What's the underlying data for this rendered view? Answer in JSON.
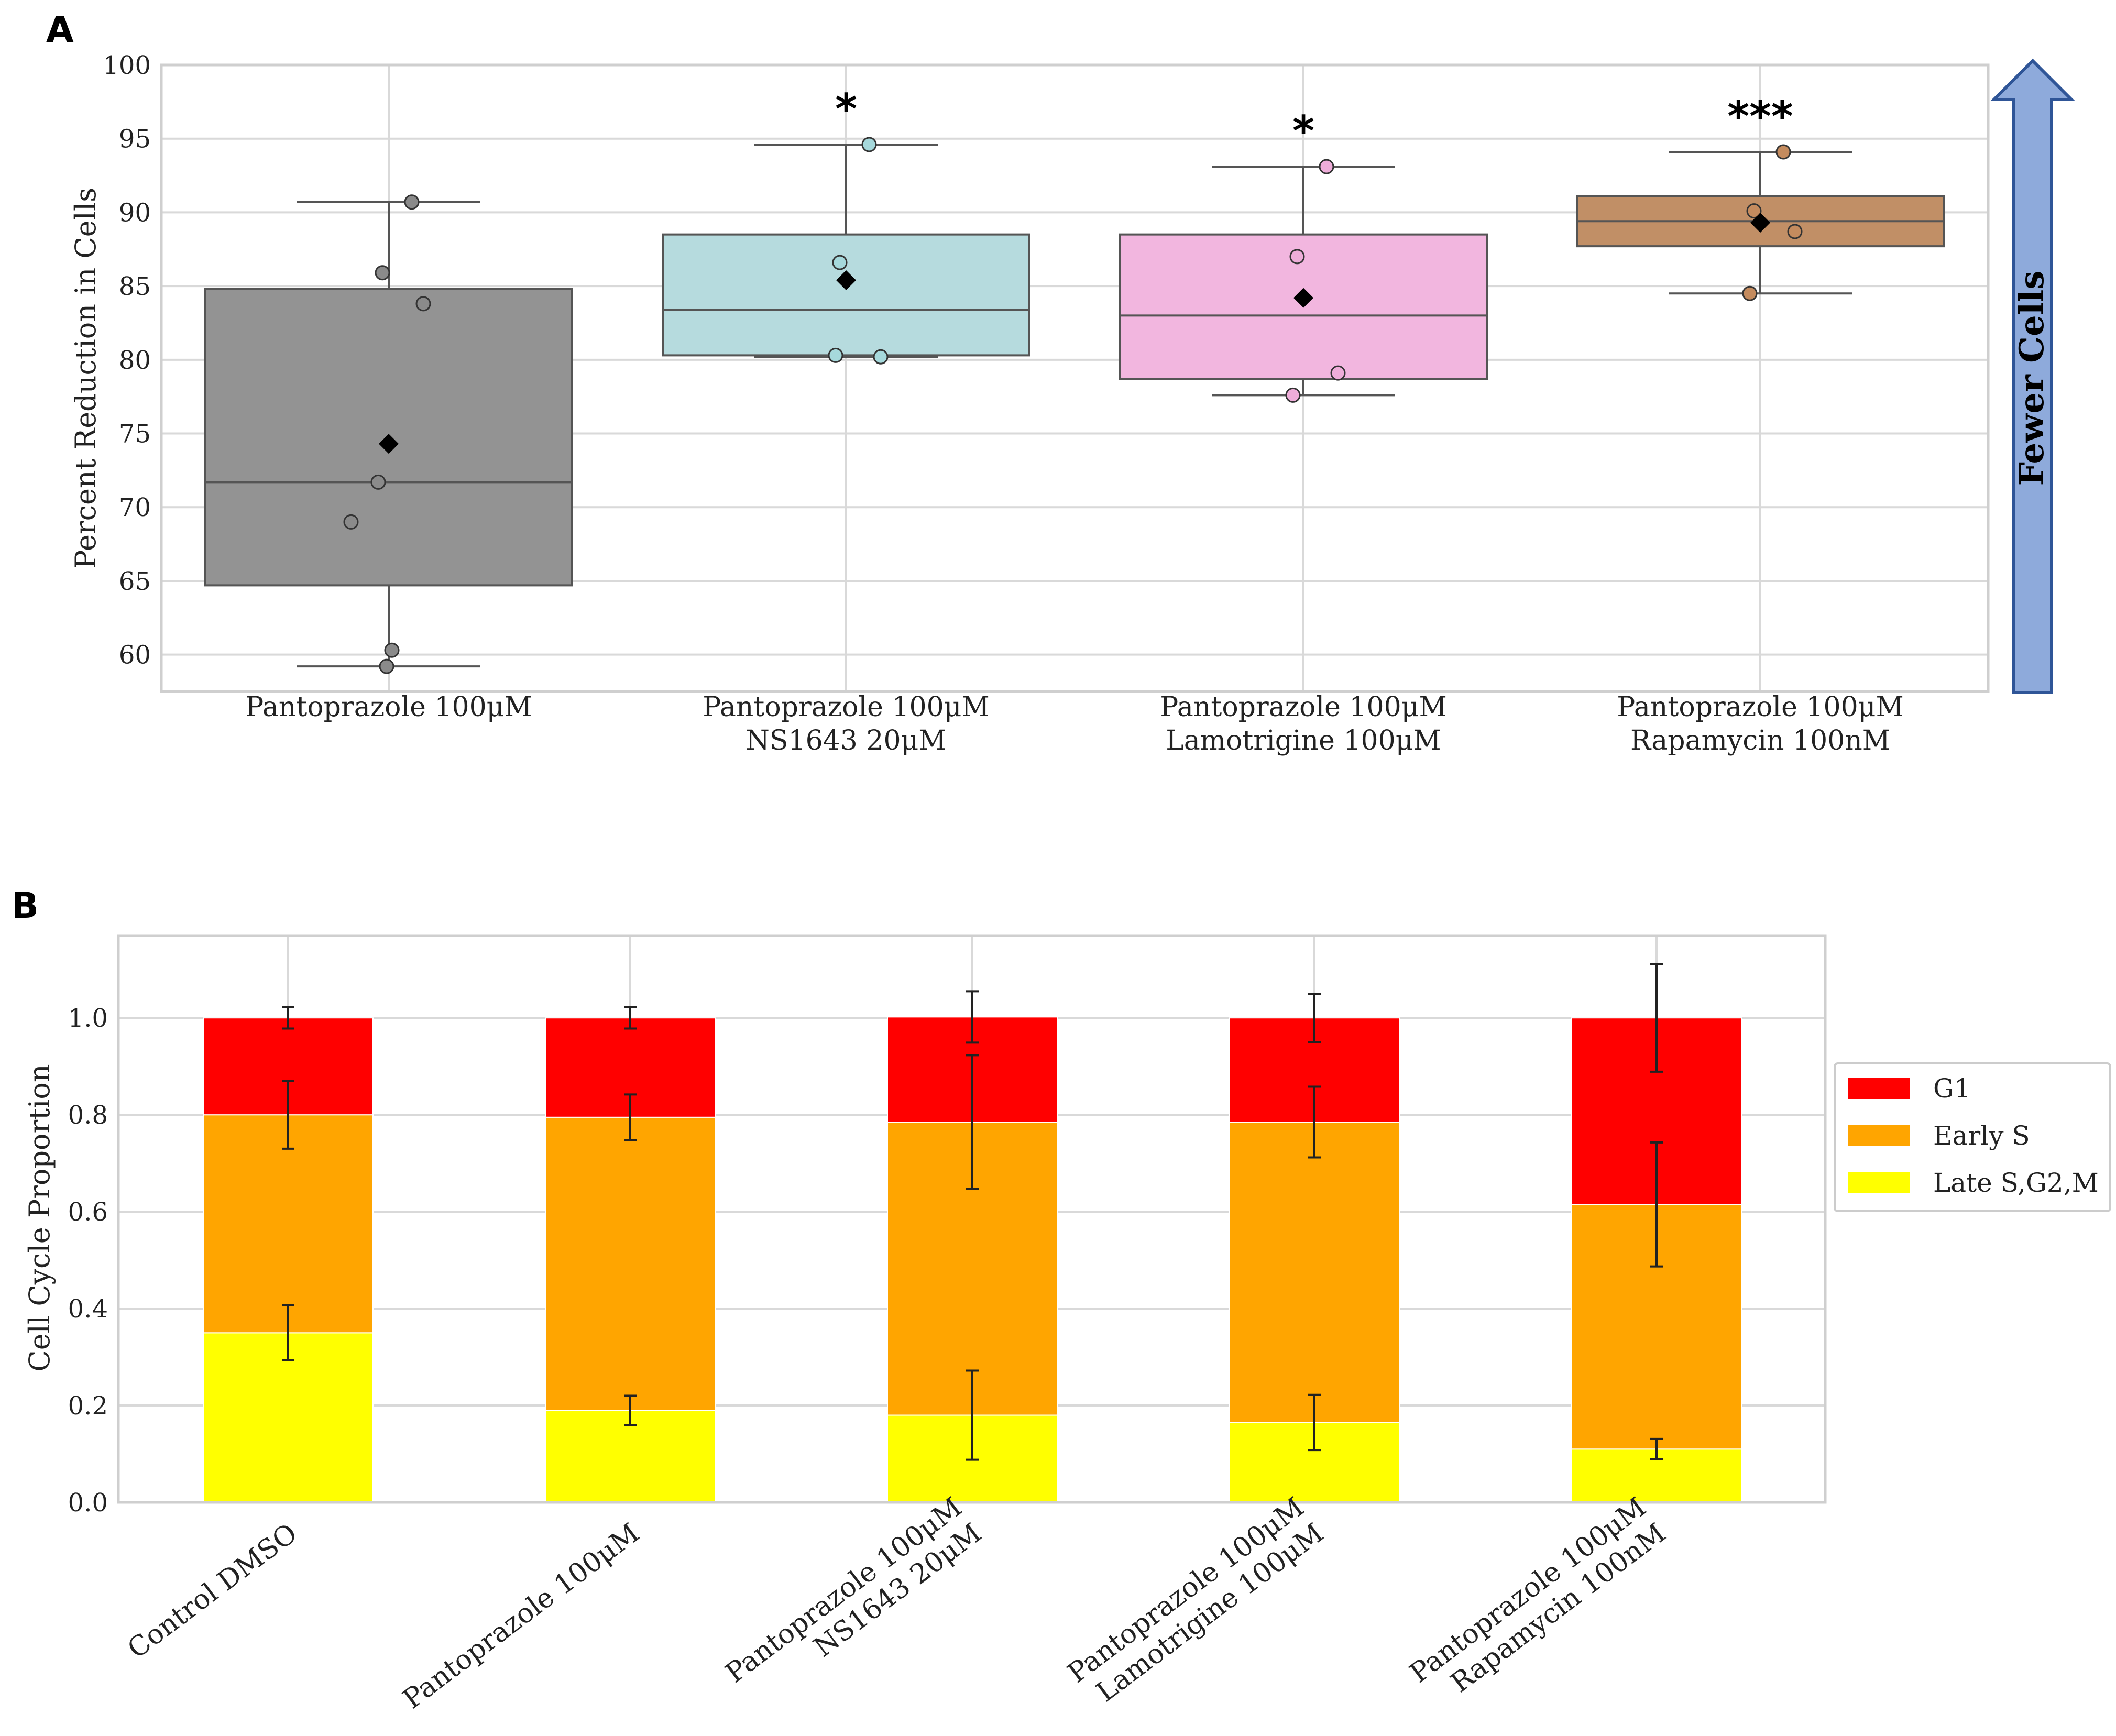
{
  "chart_data": [
    {
      "panel": "A",
      "type": "box",
      "ylabel": "Percent Reduction in Cells",
      "ylim": [
        57.5,
        100
      ],
      "yticks": [
        60,
        65,
        70,
        75,
        80,
        85,
        90,
        95,
        100
      ],
      "grid": true,
      "arrow_label": "Fewer Cells",
      "groups": [
        {
          "label_lines": [
            "Pantoprazole 100μM"
          ],
          "color": "#939393",
          "point_color": "#8a8a8a",
          "q1": 64.7,
          "median": 71.7,
          "q3": 84.8,
          "whisker_low": 59.2,
          "whisker_high": 90.7,
          "mean": 74.3,
          "points": [
            90.7,
            85.9,
            83.8,
            71.7,
            69.0,
            60.3,
            59.2
          ],
          "significance": ""
        },
        {
          "label_lines": [
            "Pantoprazole 100μM",
            "NS1643 20μM"
          ],
          "color": "#b6dbde",
          "point_color": "#a6d9dc",
          "q1": 80.3,
          "median": 83.4,
          "q3": 88.5,
          "whisker_low": 80.2,
          "whisker_high": 94.6,
          "mean": 85.4,
          "points": [
            94.6,
            86.6,
            80.2,
            80.3
          ],
          "significance": "*"
        },
        {
          "label_lines": [
            "Pantoprazole 100μM",
            "Lamotrigine 100μM"
          ],
          "color": "#f2b6df",
          "point_color": "#eeadd9",
          "q1": 78.7,
          "median": 83.0,
          "q3": 88.5,
          "whisker_low": 77.6,
          "whisker_high": 93.1,
          "mean": 84.2,
          "points": [
            93.1,
            87.0,
            79.1,
            77.6
          ],
          "significance": "*"
        },
        {
          "label_lines": [
            "Pantoprazole 100μM",
            "Rapamycin 100nM"
          ],
          "color": "#c18f66",
          "point_color": "#c48b5e",
          "q1": 87.7,
          "median": 89.4,
          "q3": 91.1,
          "whisker_low": 84.5,
          "whisker_high": 94.1,
          "mean": 89.3,
          "points": [
            94.1,
            90.1,
            88.7,
            84.5
          ],
          "significance": "***"
        }
      ]
    },
    {
      "panel": "B",
      "type": "bar",
      "stacked": true,
      "ylabel": "Cell Cycle Proportion",
      "ylim": [
        0,
        1.17
      ],
      "yticks": [
        0.0,
        0.2,
        0.4,
        0.6,
        0.8,
        1.0
      ],
      "grid": true,
      "legend_position": "right",
      "categories": [
        [
          "Control DMSO"
        ],
        [
          "Pantoprazole 100μM"
        ],
        [
          "Pantoprazole 100μM",
          "NS1643 20μM"
        ],
        [
          "Pantoprazole 100μM",
          "Lamotrigine 100μM"
        ],
        [
          "Pantoprazole 100μM",
          "Rapamycin 100nM"
        ]
      ],
      "series": [
        {
          "name": "Late S,G2,M",
          "color": "#ffff00",
          "values": [
            0.35,
            0.19,
            0.18,
            0.165,
            0.11
          ],
          "errors": [
            0.057,
            0.03,
            0.092,
            0.057,
            0.021
          ]
        },
        {
          "name": "Early S",
          "color": "#ffa500",
          "values": [
            0.45,
            0.605,
            0.605,
            0.62,
            0.505
          ],
          "errors": [
            0.07,
            0.047,
            0.138,
            0.073,
            0.128
          ]
        },
        {
          "name": "G1",
          "color": "#ff0000",
          "values": [
            0.2,
            0.205,
            0.217,
            0.215,
            0.385
          ],
          "errors": [
            0.022,
            0.022,
            0.053,
            0.05,
            0.111
          ]
        }
      ],
      "legend_order": [
        "G1",
        "Early S",
        "Late S,G2,M"
      ]
    }
  ],
  "panel_labels": [
    "A",
    "B"
  ]
}
